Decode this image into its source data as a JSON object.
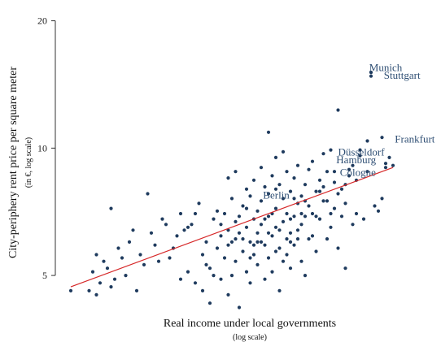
{
  "chart_data": {
    "type": "scatter",
    "title": "",
    "xlabel": "Real income under local governments",
    "xlabel_note": "(log scale)",
    "ylabel": "City-periphery rent price per square meter",
    "ylabel_note": "(in €, log scale)",
    "y_scale": "log",
    "ylim": [
      4.4,
      20.5
    ],
    "y_ticks": [
      5,
      10,
      20
    ],
    "xlim": [
      0,
      100
    ],
    "x_ticks_shown": false,
    "grid": false,
    "legend": "none",
    "colors": {
      "points": "#1f3b5e",
      "fit_line": "#d62728",
      "annotation": "#2f4f74",
      "axis": "#333333"
    },
    "fit_line": {
      "x": [
        2,
        90
      ],
      "y": [
        4.7,
        9.0
      ]
    },
    "annotations": [
      {
        "text": "Munich",
        "x": 83.5,
        "y": 15.2
      },
      {
        "text": "Stuttgart",
        "x": 87.5,
        "y": 14.6
      },
      {
        "text": "Frankfurt",
        "x": 90.5,
        "y": 10.3
      },
      {
        "text": "Düsseldorf",
        "x": 75,
        "y": 9.6
      },
      {
        "text": "Hamburg",
        "x": 74.5,
        "y": 9.2
      },
      {
        "text": "Cologne",
        "x": 75.5,
        "y": 8.6
      },
      {
        "text": "Berlin",
        "x": 54.5,
        "y": 7.6
      }
    ],
    "points": [
      [
        2,
        4.6
      ],
      [
        7,
        4.6
      ],
      [
        8,
        5.1
      ],
      [
        9,
        4.5
      ],
      [
        9,
        5.6
      ],
      [
        10,
        4.8
      ],
      [
        11,
        5.4
      ],
      [
        12,
        5.2
      ],
      [
        13,
        4.7
      ],
      [
        13,
        7.2
      ],
      [
        14,
        4.9
      ],
      [
        15,
        5.8
      ],
      [
        16,
        5.5
      ],
      [
        17,
        5.0
      ],
      [
        18,
        6.0
      ],
      [
        19,
        6.4
      ],
      [
        20,
        4.6
      ],
      [
        21,
        5.6
      ],
      [
        22,
        5.3
      ],
      [
        23,
        7.8
      ],
      [
        24,
        6.3
      ],
      [
        25,
        5.9
      ],
      [
        26,
        5.4
      ],
      [
        27,
        6.8
      ],
      [
        28,
        6.6
      ],
      [
        29,
        5.5
      ],
      [
        30,
        5.8
      ],
      [
        31,
        6.2
      ],
      [
        32,
        4.9
      ],
      [
        32,
        7.0
      ],
      [
        33,
        6.4
      ],
      [
        34,
        5.1
      ],
      [
        35,
        6.6
      ],
      [
        36,
        4.8
      ],
      [
        37,
        7.4
      ],
      [
        38,
        5.6
      ],
      [
        38,
        4.6
      ],
      [
        39,
        6.0
      ],
      [
        40,
        5.2
      ],
      [
        40,
        4.3
      ],
      [
        41,
        6.8
      ],
      [
        42,
        7.1
      ],
      [
        42,
        5.8
      ],
      [
        43,
        6.2
      ],
      [
        43,
        4.9
      ],
      [
        44,
        7.0
      ],
      [
        44,
        5.5
      ],
      [
        45,
        6.4
      ],
      [
        45,
        4.5
      ],
      [
        45,
        8.5
      ],
      [
        46,
        5.0
      ],
      [
        46,
        7.6
      ],
      [
        47,
        6.1
      ],
      [
        47,
        5.4
      ],
      [
        47,
        8.8
      ],
      [
        48,
        6.9
      ],
      [
        48,
        4.2
      ],
      [
        49,
        5.7
      ],
      [
        49,
        7.3
      ],
      [
        50,
        6.5
      ],
      [
        50,
        5.1
      ],
      [
        50,
        8.0
      ],
      [
        51,
        6.0
      ],
      [
        51,
        7.7
      ],
      [
        51,
        4.8
      ],
      [
        52,
        6.8
      ],
      [
        52,
        5.6
      ],
      [
        52,
        8.4
      ],
      [
        53,
        7.1
      ],
      [
        53,
        6.3
      ],
      [
        53,
        5.3
      ],
      [
        54,
        9.0
      ],
      [
        54,
        6.6
      ],
      [
        54,
        7.5
      ],
      [
        55,
        5.9
      ],
      [
        55,
        4.9
      ],
      [
        55,
        8.1
      ],
      [
        56,
        6.9
      ],
      [
        56,
        7.8
      ],
      [
        56,
        5.5
      ],
      [
        56,
        10.9
      ],
      [
        57,
        6.2
      ],
      [
        57,
        8.6
      ],
      [
        57,
        5.1
      ],
      [
        58,
        7.2
      ],
      [
        58,
        6.5
      ],
      [
        58,
        9.5
      ],
      [
        59,
        5.8
      ],
      [
        59,
        8.2
      ],
      [
        59,
        4.6
      ],
      [
        60,
        6.7
      ],
      [
        60,
        7.6
      ],
      [
        60,
        9.8
      ],
      [
        61,
        5.6
      ],
      [
        61,
        7.0
      ],
      [
        61,
        8.8
      ],
      [
        62,
        6.3
      ],
      [
        62,
        5.2
      ],
      [
        62,
        7.9
      ],
      [
        63,
        6.9
      ],
      [
        63,
        8.5
      ],
      [
        63,
        5.9
      ],
      [
        64,
        7.4
      ],
      [
        64,
        6.1
      ],
      [
        64,
        9.1
      ],
      [
        65,
        5.4
      ],
      [
        65,
        7.7
      ],
      [
        65,
        6.6
      ],
      [
        66,
        8.2
      ],
      [
        66,
        5.0
      ],
      [
        66,
        6.9
      ],
      [
        67,
        8.9
      ],
      [
        67,
        7.3
      ],
      [
        68,
        6.2
      ],
      [
        68,
        9.3
      ],
      [
        69,
        7.9
      ],
      [
        69,
        5.7
      ],
      [
        70,
        8.4
      ],
      [
        70,
        6.8
      ],
      [
        71,
        9.7
      ],
      [
        71,
        7.5
      ],
      [
        72,
        6.1
      ],
      [
        72,
        8.8
      ],
      [
        73,
        9.9
      ],
      [
        73,
        6.5
      ],
      [
        74,
        7.2
      ],
      [
        74,
        8.3
      ],
      [
        75,
        12.3
      ],
      [
        75,
        5.8
      ],
      [
        76,
        6.9
      ],
      [
        77,
        7.4
      ],
      [
        77,
        5.2
      ],
      [
        78,
        8.6
      ],
      [
        79,
        6.6
      ],
      [
        80,
        7.0
      ],
      [
        81,
        9.6
      ],
      [
        82,
        6.8
      ],
      [
        83,
        10.4
      ],
      [
        84,
        15.1
      ],
      [
        84,
        14.8
      ],
      [
        85,
        7.3
      ],
      [
        86,
        7.1
      ],
      [
        87,
        10.6
      ],
      [
        87,
        7.6
      ],
      [
        88,
        9.0
      ],
      [
        88,
        9.2
      ],
      [
        89,
        9.5
      ],
      [
        90,
        9.1
      ],
      [
        34,
        6.5
      ],
      [
        36,
        7.0
      ],
      [
        39,
        5.3
      ],
      [
        41,
        5.0
      ],
      [
        43,
        6.6
      ],
      [
        46,
        6.0
      ],
      [
        48,
        6.3
      ],
      [
        50,
        7.2
      ],
      [
        52,
        5.9
      ],
      [
        54,
        6.0
      ],
      [
        55,
        6.8
      ],
      [
        57,
        7.0
      ],
      [
        58,
        5.7
      ],
      [
        59,
        6.4
      ],
      [
        61,
        6.1
      ],
      [
        62,
        6.8
      ],
      [
        64,
        6.4
      ],
      [
        66,
        7.5
      ],
      [
        68,
        7.0
      ],
      [
        70,
        7.9
      ],
      [
        72,
        7.5
      ],
      [
        74,
        8.8
      ],
      [
        76,
        8.0
      ],
      [
        78,
        8.9
      ],
      [
        80,
        8.4
      ],
      [
        45,
        5.9
      ],
      [
        47,
        6.7
      ],
      [
        49,
        6.1
      ],
      [
        51,
        5.5
      ],
      [
        53,
        6.0
      ],
      [
        56,
        6.3
      ],
      [
        58,
        8.0
      ],
      [
        60,
        5.4
      ],
      [
        62,
        6.0
      ],
      [
        63,
        7.6
      ],
      [
        65,
        7.0
      ],
      [
        67,
        6.1
      ],
      [
        69,
        6.9
      ],
      [
        71,
        8.1
      ],
      [
        73,
        7.0
      ],
      [
        75,
        7.8
      ],
      [
        77,
        8.2
      ],
      [
        79,
        9.1
      ],
      [
        81,
        9.9
      ],
      [
        83,
        8.8
      ]
    ]
  }
}
